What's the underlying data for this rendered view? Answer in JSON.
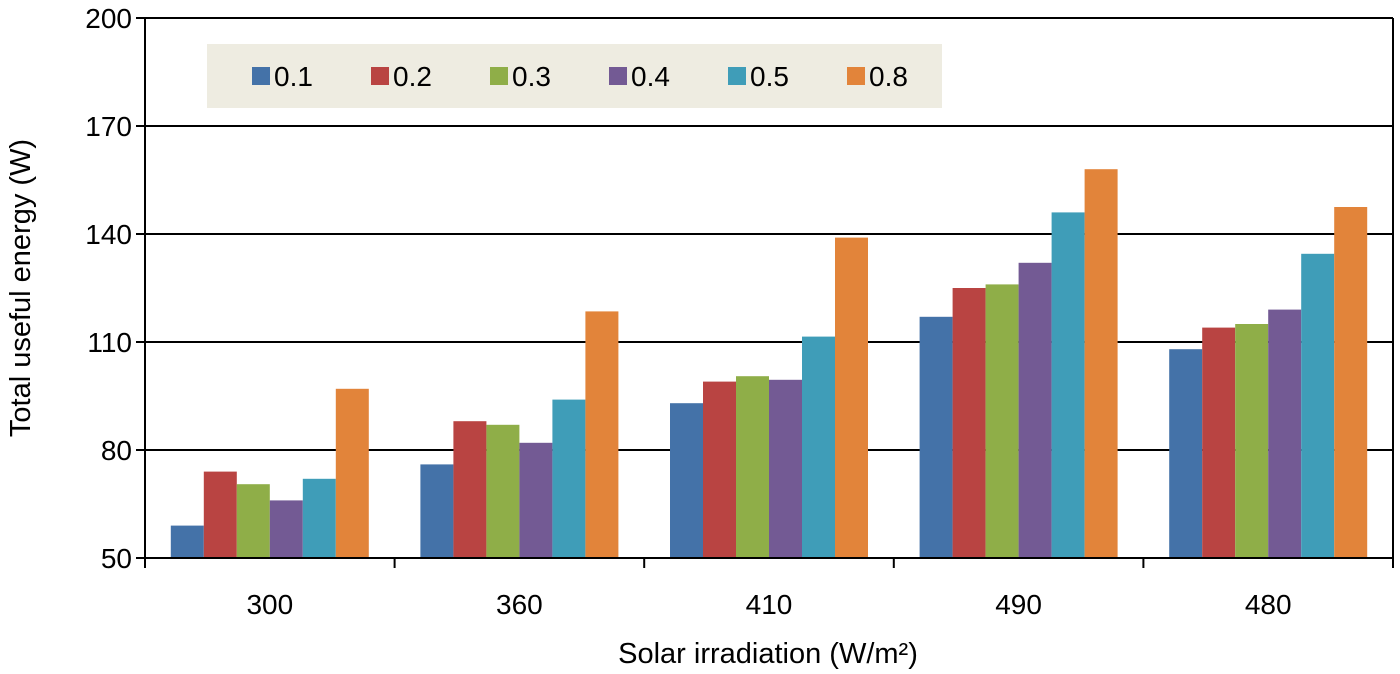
{
  "chart_data": {
    "type": "bar",
    "title": "",
    "xlabel": "Solar irradiation (W/m²)",
    "ylabel": "Total useful energy (W)",
    "ylim": [
      50,
      200
    ],
    "yticks": [
      50,
      80,
      110,
      140,
      170,
      200
    ],
    "grid": true,
    "legend_position": "top-left",
    "categories": [
      "300",
      "360",
      "410",
      "490",
      "480"
    ],
    "series": [
      {
        "name": "0.1",
        "color": "#4472a8",
        "values": [
          59,
          76,
          93,
          117,
          108
        ]
      },
      {
        "name": "0.2",
        "color": "#b94442",
        "values": [
          74,
          88,
          99,
          125,
          114
        ]
      },
      {
        "name": "0.3",
        "color": "#8fae48",
        "values": [
          70.5,
          87,
          100.5,
          126,
          115
        ]
      },
      {
        "name": "0.4",
        "color": "#735a94",
        "values": [
          66,
          82,
          99.5,
          132,
          119
        ]
      },
      {
        "name": "0.5",
        "color": "#3f9db8",
        "values": [
          72,
          94,
          111.5,
          146,
          134.5
        ]
      },
      {
        "name": "0.8",
        "color": "#e2843a",
        "values": [
          97,
          118.5,
          139,
          158,
          147.5
        ]
      }
    ]
  }
}
